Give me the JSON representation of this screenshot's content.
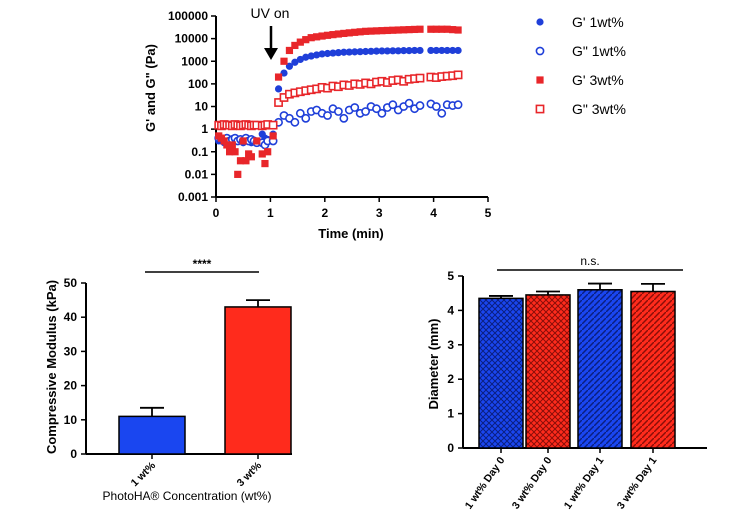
{
  "colors": {
    "blue": "#1f3fd9",
    "red": "#e8262a",
    "bar_blue": "#1a46f0",
    "bar_red": "#ff2b1c"
  },
  "chart_data": [
    {
      "type": "scatter",
      "xlabel": "Time (min)",
      "ylabel": "G' and G\" (Pa)",
      "xlim": [
        0,
        5
      ],
      "ylim": [
        0.001,
        100000
      ],
      "yscale": "log",
      "x_ticks": [
        "0",
        "1",
        "2",
        "3",
        "4",
        "5"
      ],
      "y_ticks": [
        "0.001",
        "0.01",
        "0.1",
        "1",
        "10",
        "100",
        "1000",
        "10000",
        "100000"
      ],
      "annotation": "UV on",
      "annotation_x": 1,
      "legend_position": "right",
      "series": [
        {
          "name": "G'  1wt%",
          "marker": "filled-circle",
          "color": "#1f3fd9",
          "x": [
            0.05,
            0.1,
            0.15,
            0.2,
            0.25,
            0.3,
            0.35,
            0.4,
            0.45,
            0.5,
            0.55,
            0.6,
            0.65,
            0.7,
            0.75,
            0.85,
            0.9,
            0.95,
            1.05,
            1.15,
            1.25,
            1.35,
            1.45,
            1.55,
            1.65,
            1.75,
            1.85,
            1.95,
            2.05,
            2.15,
            2.25,
            2.35,
            2.45,
            2.55,
            2.65,
            2.75,
            2.85,
            2.95,
            3.05,
            3.15,
            3.25,
            3.35,
            3.45,
            3.55,
            3.65,
            3.75,
            3.95,
            4.05,
            4.15,
            4.25,
            4.35,
            4.45
          ],
          "y": [
            0.3,
            0.3,
            0.25,
            0.3,
            0.25,
            0.3,
            0.3,
            0.35,
            0.3,
            0.25,
            0.3,
            0.3,
            0.25,
            0.3,
            0.3,
            0.6,
            0.4,
            0.35,
            0.6,
            60,
            300,
            600,
            900,
            1200,
            1500,
            1700,
            1900,
            2100,
            2200,
            2300,
            2400,
            2500,
            2550,
            2600,
            2650,
            2700,
            2750,
            2800,
            2850,
            2850,
            2900,
            2900,
            2950,
            2950,
            3000,
            3000,
            3000,
            3000,
            3000,
            3000,
            3000,
            3000
          ]
        },
        {
          "name": "G\"  1wt%",
          "marker": "open-circle",
          "color": "#1f3fd9",
          "x": [
            0.05,
            0.1,
            0.15,
            0.2,
            0.25,
            0.3,
            0.35,
            0.4,
            0.45,
            0.5,
            0.55,
            0.6,
            0.65,
            0.7,
            0.75,
            0.85,
            0.9,
            0.95,
            1.05,
            1.15,
            1.25,
            1.35,
            1.45,
            1.55,
            1.65,
            1.75,
            1.85,
            1.95,
            2.05,
            2.15,
            2.25,
            2.35,
            2.45,
            2.55,
            2.65,
            2.75,
            2.85,
            2.95,
            3.05,
            3.15,
            3.25,
            3.35,
            3.45,
            3.55,
            3.65,
            3.75,
            3.95,
            4.05,
            4.15,
            4.25,
            4.35,
            4.45
          ],
          "y": [
            0.4,
            0.35,
            0.3,
            0.4,
            0.3,
            0.35,
            0.4,
            0.3,
            0.35,
            0.3,
            0.4,
            0.3,
            0.35,
            0.3,
            0.25,
            0.25,
            0.2,
            0.3,
            0.3,
            2,
            4,
            3,
            2,
            5,
            3,
            6,
            7,
            5,
            4,
            8,
            6,
            3,
            7,
            9,
            5,
            6,
            10,
            8,
            5,
            9,
            12,
            7,
            10,
            14,
            8,
            11,
            13,
            10,
            5,
            12,
            11,
            12
          ]
        },
        {
          "name": "G'  3wt%",
          "marker": "filled-square",
          "color": "#e8262a",
          "x": [
            0.05,
            0.1,
            0.15,
            0.2,
            0.25,
            0.3,
            0.35,
            0.4,
            0.45,
            0.5,
            0.55,
            0.6,
            0.65,
            0.75,
            0.85,
            0.9,
            0.95,
            1.05,
            1.15,
            1.25,
            1.35,
            1.45,
            1.55,
            1.65,
            1.75,
            1.85,
            1.95,
            2.05,
            2.15,
            2.25,
            2.35,
            2.45,
            2.55,
            2.65,
            2.75,
            2.85,
            2.95,
            3.05,
            3.15,
            3.25,
            3.35,
            3.45,
            3.55,
            3.65,
            3.75,
            3.95,
            4.05,
            4.15,
            4.25,
            4.35,
            4.45
          ],
          "y": [
            0.5,
            0.4,
            0.3,
            0.2,
            0.1,
            0.2,
            0.1,
            0.01,
            0.04,
            0.3,
            0.04,
            0.08,
            0.06,
            0.3,
            0.08,
            0.03,
            0.1,
            0.5,
            200,
            1000,
            3000,
            5000,
            7000,
            9000,
            11000,
            12000,
            13000,
            14000,
            15000,
            16000,
            17000,
            18000,
            19000,
            20000,
            21000,
            21500,
            22000,
            22500,
            23000,
            23500,
            24000,
            24500,
            25000,
            25500,
            26000,
            26000,
            26000,
            26000,
            26000,
            25000,
            24000
          ]
        },
        {
          "name": "G\"  3wt%",
          "marker": "open-square",
          "color": "#e8262a",
          "x": [
            0.05,
            0.1,
            0.15,
            0.2,
            0.25,
            0.3,
            0.35,
            0.4,
            0.45,
            0.5,
            0.55,
            0.6,
            0.65,
            0.7,
            0.75,
            0.85,
            0.9,
            0.95,
            1.05,
            1.15,
            1.25,
            1.35,
            1.45,
            1.55,
            1.65,
            1.75,
            1.85,
            1.95,
            2.05,
            2.15,
            2.25,
            2.35,
            2.45,
            2.55,
            2.65,
            2.75,
            2.85,
            2.95,
            3.05,
            3.15,
            3.25,
            3.35,
            3.45,
            3.55,
            3.65,
            3.75,
            3.95,
            4.05,
            4.15,
            4.25,
            4.35,
            4.45
          ],
          "y": [
            1.5,
            1.4,
            1.6,
            1.5,
            1.5,
            1.4,
            1.6,
            1.5,
            1.4,
            1.5,
            1.6,
            1.5,
            1.4,
            1.5,
            1.5,
            1.4,
            1.5,
            1.6,
            1.5,
            15,
            25,
            35,
            40,
            45,
            50,
            55,
            60,
            70,
            65,
            80,
            75,
            90,
            85,
            100,
            95,
            110,
            100,
            120,
            130,
            115,
            140,
            150,
            130,
            160,
            170,
            180,
            200,
            190,
            210,
            220,
            230,
            250
          ]
        }
      ]
    },
    {
      "type": "bar",
      "categories": [
        "1 wt%",
        "3 wt%"
      ],
      "values": [
        11,
        43
      ],
      "errors": [
        2.5,
        2
      ],
      "colors": [
        "#1a46f0",
        "#ff2b1c"
      ],
      "ylabel": "Compressive Modulus (kPa)",
      "xlabel": "PhotoHA® Concentration (wt%)",
      "ylim": [
        0,
        50
      ],
      "y_ticks": [
        "0",
        "10",
        "20",
        "30",
        "40",
        "50"
      ],
      "significance": "****"
    },
    {
      "type": "bar",
      "categories": [
        "1 wt% Day 0",
        "3 wt% Day 0",
        "1 wt% Day 1",
        "3 wt% Day 1"
      ],
      "values": [
        4.35,
        4.45,
        4.6,
        4.55
      ],
      "errors": [
        0.07,
        0.1,
        0.18,
        0.22
      ],
      "colors": [
        "#1a46f0",
        "#ff2b1c",
        "#1a46f0",
        "#ff2b1c"
      ],
      "patterns": [
        "crosshatch",
        "crosshatch",
        "diagonal",
        "diagonal"
      ],
      "ylabel": "Diameter (mm)",
      "ylim": [
        0,
        5
      ],
      "y_ticks": [
        "0",
        "1",
        "2",
        "3",
        "4",
        "5"
      ],
      "significance": "n.s."
    }
  ]
}
